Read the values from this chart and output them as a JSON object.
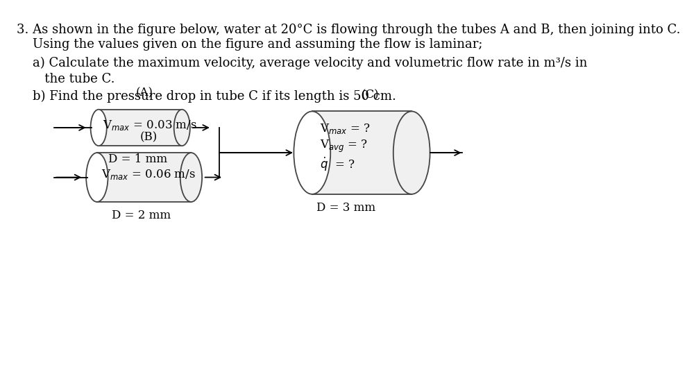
{
  "line1": "3. As shown in the figure below, water at 20°C is flowing through the tubes A and B, then joining into C.",
  "line2": "    Using the values given on the figure and assuming the flow is laminar;",
  "line3": "    a) Calculate the maximum velocity, average velocity and volumetric flow rate in m³/s in",
  "line4": "       the tube C.",
  "line5": "    b) Find the pressure drop in tube C if its length is 50 cm.",
  "label_A": "(A)",
  "label_B": "(B)",
  "label_C": "(C)",
  "A_vmax": "V$_{max}$ = 0.03 m/s",
  "A_D": "D = 1 mm",
  "B_vmax": "V$_{max}$ = 0.06 m/s",
  "B_D": "D = 2 mm",
  "C_vmax": "V$_{max}$ = ?",
  "C_vavg": "V$_{avg}$ = ?",
  "C_q": "$\\dot{q}$  = ?",
  "C_D": "D = 3 mm",
  "bg": "#ffffff",
  "fg": "#000000",
  "tube_fill": "#f0f0f0",
  "tube_edge": "#444444",
  "text_fs": 13.0,
  "diagram_fs": 12.0
}
